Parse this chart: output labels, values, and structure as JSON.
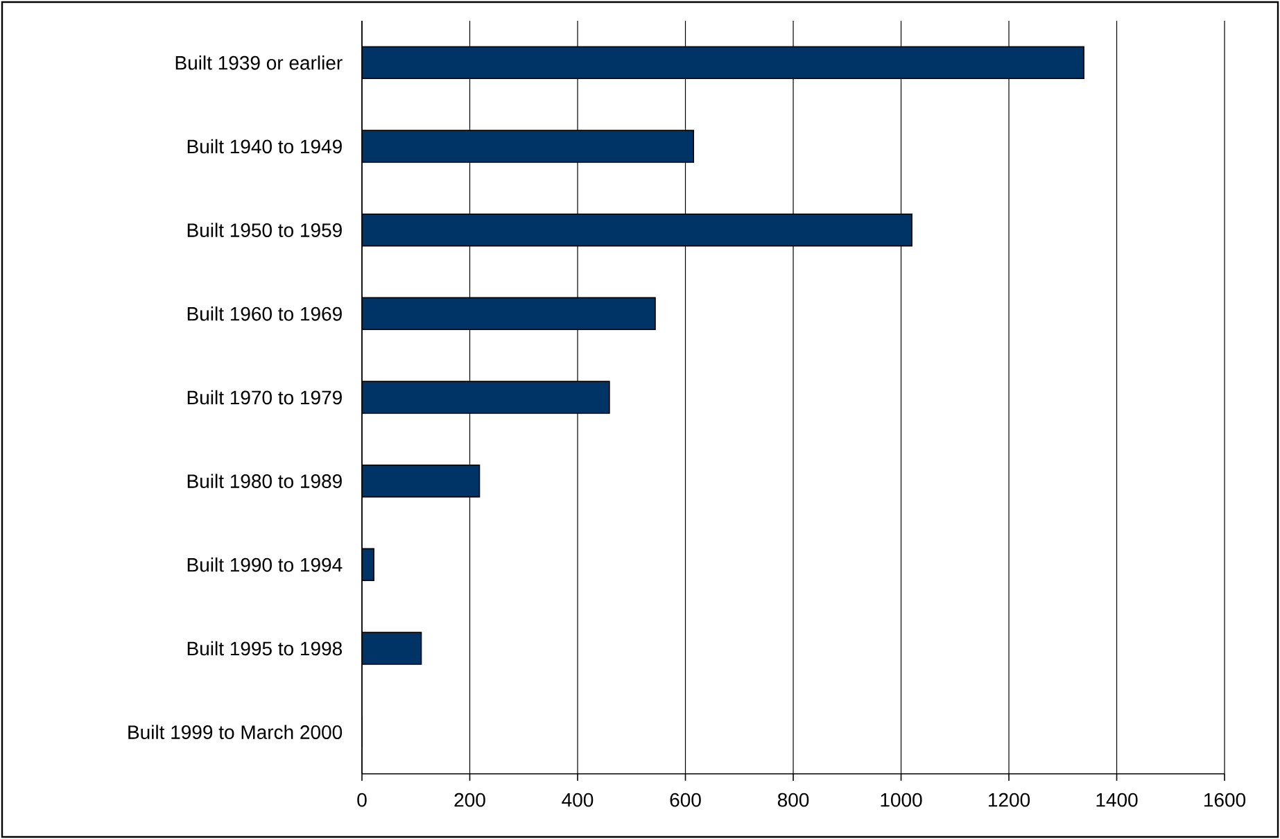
{
  "chart_data": {
    "type": "bar",
    "orientation": "horizontal",
    "categories": [
      "Built 1939 or earlier",
      "Built 1940 to 1949",
      "Built 1950 to 1959",
      "Built 1960 to 1969",
      "Built 1970 to 1979",
      "Built 1980 to 1989",
      "Built 1990 to 1994",
      "Built 1995 to 1998",
      "Built 1999 to March 2000"
    ],
    "values": [
      1339,
      615,
      1020,
      544,
      459,
      218,
      22,
      110,
      0
    ],
    "color": "#003366",
    "xlim": [
      0,
      1600
    ],
    "xticks": [
      0,
      200,
      400,
      600,
      800,
      1000,
      1200,
      1400,
      1600
    ],
    "grid": "x"
  }
}
